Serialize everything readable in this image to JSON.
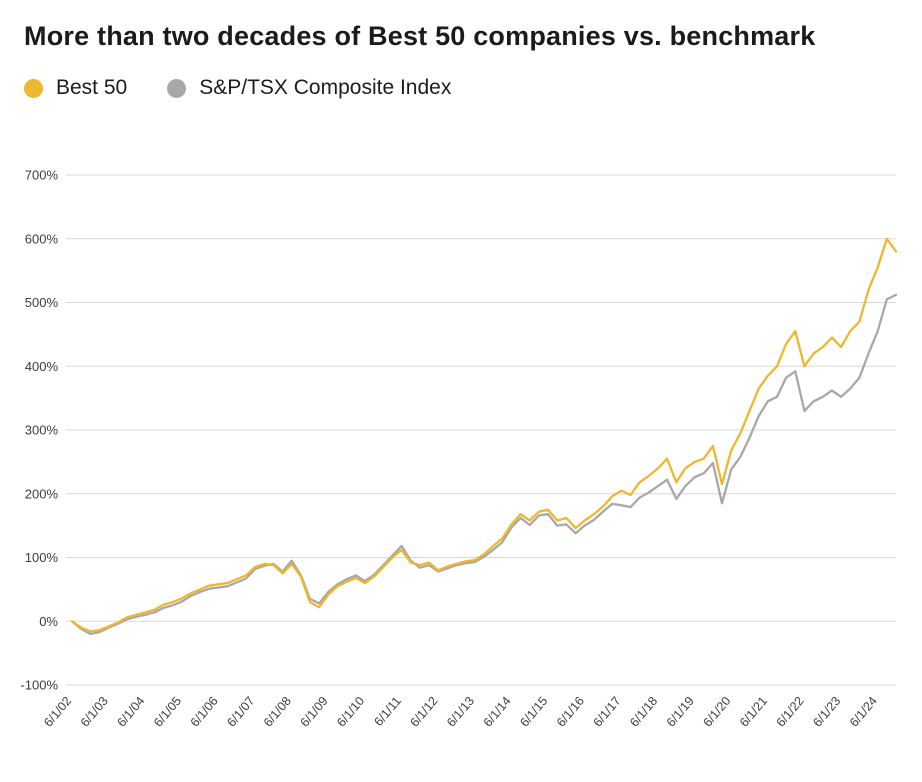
{
  "title": "More than two decades of Best 50 companies vs. benchmark",
  "legend": [
    {
      "label": "Best 50",
      "color": "#EDB72F"
    },
    {
      "label": "S&P/TSX Composite Index",
      "color": "#A8A8A8"
    }
  ],
  "chart_data": {
    "type": "line",
    "title": "More than two decades of Best 50 companies vs. benchmark",
    "xlabel": "",
    "ylabel": "",
    "ylim": [
      -100,
      700
    ],
    "yticks": [
      700,
      600,
      500,
      400,
      300,
      200,
      100,
      0,
      -100
    ],
    "ytick_suffix": "%",
    "grid": "horizontal",
    "legend_position": "top-left",
    "x_tick_labels": [
      "6/1/02",
      "6/1/03",
      "6/1/04",
      "6/1/05",
      "6/1/06",
      "6/1/07",
      "6/1/08",
      "6/1/09",
      "6/1/10",
      "6/1/11",
      "6/1/12",
      "6/1/13",
      "6/1/14",
      "6/1/15",
      "6/1/16",
      "6/1/17",
      "6/1/18",
      "6/1/19",
      "6/1/20",
      "6/1/21",
      "6/1/22",
      "6/1/23",
      "6/1/24"
    ],
    "x": [
      "6/02",
      "9/02",
      "12/02",
      "3/03",
      "6/03",
      "9/03",
      "12/03",
      "3/04",
      "6/04",
      "9/04",
      "12/04",
      "3/05",
      "6/05",
      "9/05",
      "12/05",
      "3/06",
      "6/06",
      "9/06",
      "12/06",
      "3/07",
      "6/07",
      "9/07",
      "12/07",
      "3/08",
      "6/08",
      "9/08",
      "12/08",
      "3/09",
      "6/09",
      "9/09",
      "12/09",
      "3/10",
      "6/10",
      "9/10",
      "12/10",
      "3/11",
      "6/11",
      "9/11",
      "12/11",
      "3/12",
      "6/12",
      "9/12",
      "12/12",
      "3/13",
      "6/13",
      "9/13",
      "12/13",
      "3/14",
      "6/14",
      "9/14",
      "12/14",
      "3/15",
      "6/15",
      "9/15",
      "12/15",
      "3/16",
      "6/16",
      "9/16",
      "12/16",
      "3/17",
      "6/17",
      "9/17",
      "12/17",
      "3/18",
      "6/18",
      "9/18",
      "12/18",
      "3/19",
      "6/19",
      "9/19",
      "12/19",
      "3/20",
      "6/20",
      "9/20",
      "12/20",
      "3/21",
      "6/21",
      "9/21",
      "12/21",
      "3/22",
      "6/22",
      "9/22",
      "12/22",
      "3/23",
      "6/23",
      "9/23",
      "12/23",
      "3/24",
      "6/24",
      "9/24",
      "12/24"
    ],
    "series": [
      {
        "name": "Best 50",
        "color": "#EDB72F",
        "values": [
          0,
          -10,
          -16,
          -14,
          -8,
          -2,
          6,
          10,
          14,
          18,
          26,
          30,
          36,
          44,
          50,
          56,
          58,
          60,
          66,
          72,
          85,
          90,
          88,
          75,
          90,
          70,
          30,
          22,
          42,
          55,
          62,
          68,
          60,
          70,
          85,
          100,
          112,
          92,
          88,
          92,
          80,
          86,
          90,
          94,
          96,
          105,
          118,
          130,
          152,
          168,
          158,
          172,
          175,
          158,
          162,
          146,
          158,
          168,
          180,
          196,
          205,
          198,
          218,
          228,
          240,
          255,
          218,
          240,
          250,
          255,
          275,
          215,
          268,
          295,
          330,
          365,
          385,
          400,
          435,
          455,
          400,
          420,
          430,
          445,
          430,
          455,
          470,
          520,
          555,
          600,
          580
        ]
      },
      {
        "name": "S&P/TSX Composite Index",
        "color": "#A8A8A8",
        "values": [
          0,
          -12,
          -20,
          -17,
          -10,
          -4,
          3,
          7,
          10,
          14,
          21,
          25,
          31,
          40,
          46,
          51,
          53,
          55,
          61,
          67,
          82,
          87,
          90,
          78,
          95,
          72,
          35,
          28,
          46,
          58,
          66,
          72,
          63,
          73,
          88,
          103,
          118,
          95,
          84,
          88,
          78,
          83,
          88,
          91,
          93,
          101,
          112,
          124,
          147,
          162,
          151,
          166,
          168,
          150,
          152,
          138,
          150,
          159,
          172,
          184,
          182,
          179,
          194,
          202,
          212,
          222,
          192,
          212,
          226,
          232,
          248,
          185,
          238,
          258,
          288,
          322,
          345,
          352,
          382,
          392,
          330,
          345,
          352,
          362,
          352,
          365,
          382,
          420,
          455,
          505,
          512
        ]
      }
    ]
  }
}
